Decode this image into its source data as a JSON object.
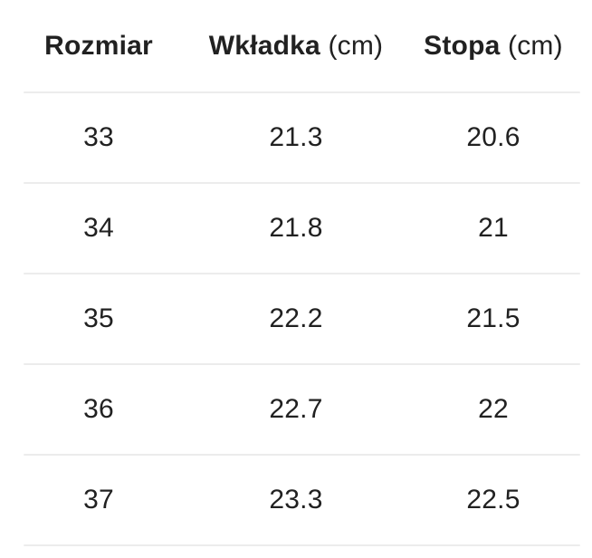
{
  "table": {
    "header": {
      "size_label": "Rozmiar",
      "insole_label": "Wkładka",
      "insole_unit": "(cm)",
      "foot_label": "Stopa",
      "foot_unit": "(cm)"
    },
    "rows": [
      {
        "size": "33",
        "insole": "21.3",
        "foot": "20.6"
      },
      {
        "size": "34",
        "insole": "21.8",
        "foot": "21"
      },
      {
        "size": "35",
        "insole": "22.2",
        "foot": "21.5"
      },
      {
        "size": "36",
        "insole": "22.7",
        "foot": "22"
      },
      {
        "size": "37",
        "insole": "23.3",
        "foot": "22.5"
      }
    ]
  },
  "colors": {
    "text": "#212121",
    "divider": "#ececec",
    "background": "#ffffff"
  }
}
